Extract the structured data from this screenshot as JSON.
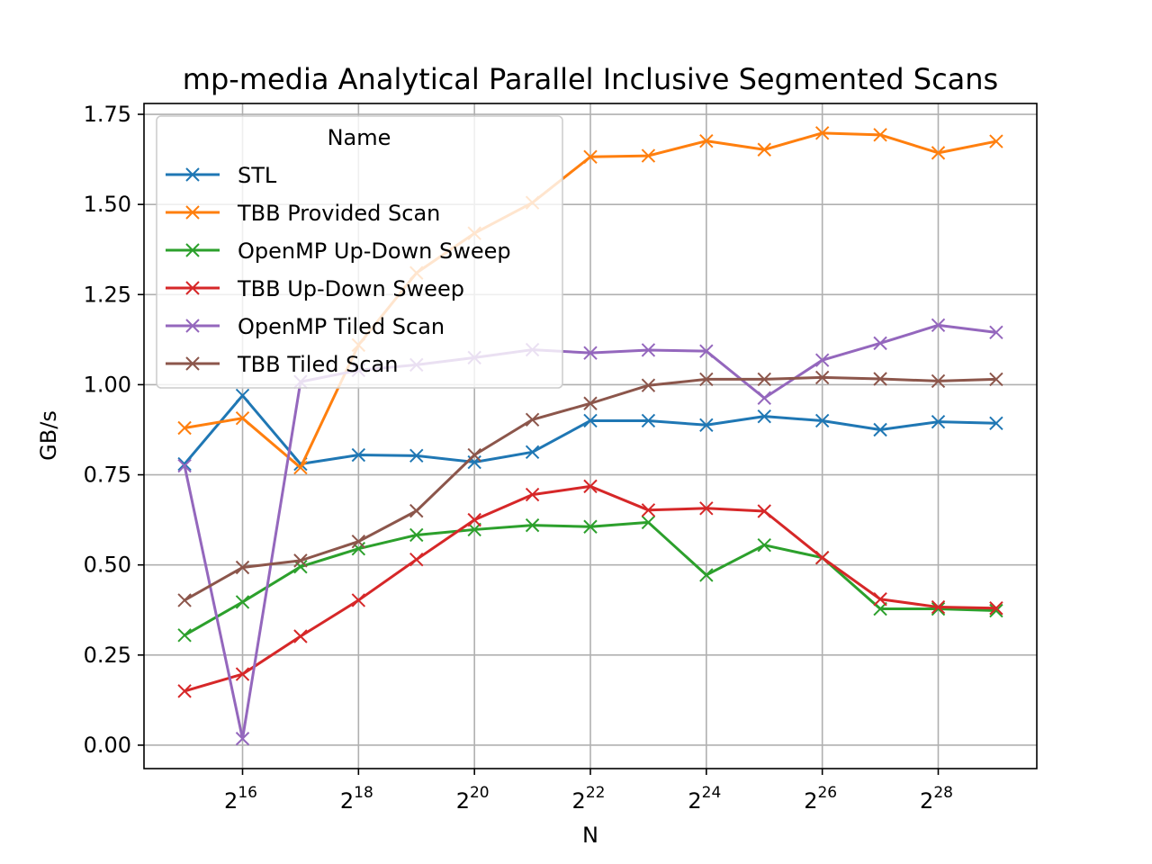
{
  "chart_data": {
    "type": "line",
    "title": "mp-media Analytical Parallel Inclusive Segmented Scans",
    "xlabel": "N",
    "ylabel": "GB/s",
    "x_scale": "log2",
    "x_exponents": [
      15,
      16,
      17,
      18,
      19,
      20,
      21,
      22,
      23,
      24,
      25,
      26,
      27,
      28,
      29
    ],
    "x_tick_exponents": [
      16,
      18,
      20,
      22,
      24,
      26,
      28
    ],
    "x_tick_base": "2",
    "y_ticks": [
      "0.00",
      "0.25",
      "0.50",
      "0.75",
      "1.00",
      "1.25",
      "1.50",
      "1.75"
    ],
    "ylim": [
      -0.065,
      1.78
    ],
    "grid": true,
    "legend": {
      "title": "Name",
      "position": "upper-left"
    },
    "marker": "x",
    "series": [
      {
        "name": "STL",
        "color": "#1f77b4",
        "values": [
          0.78,
          0.97,
          0.78,
          0.805,
          0.803,
          0.785,
          0.813,
          0.9,
          0.9,
          0.888,
          0.912,
          0.9,
          0.875,
          0.897,
          0.893
        ]
      },
      {
        "name": "TBB Provided Scan",
        "color": "#ff7f0e",
        "values": [
          0.88,
          0.907,
          0.77,
          1.11,
          1.31,
          1.42,
          1.505,
          1.632,
          1.635,
          1.676,
          1.652,
          1.698,
          1.693,
          1.643,
          1.675
        ]
      },
      {
        "name": "OpenMP Up-Down Sweep",
        "color": "#2ca02c",
        "values": [
          0.305,
          0.397,
          0.495,
          0.545,
          0.583,
          0.598,
          0.61,
          0.606,
          0.618,
          0.472,
          0.555,
          0.52,
          0.378,
          0.378,
          0.373
        ]
      },
      {
        "name": "TBB Up-Down Sweep",
        "color": "#d62728",
        "values": [
          0.15,
          0.197,
          0.302,
          0.402,
          0.515,
          0.625,
          0.695,
          0.718,
          0.652,
          0.657,
          0.649,
          0.52,
          0.405,
          0.383,
          0.38
        ]
      },
      {
        "name": "OpenMP Tiled Scan",
        "color": "#9467bd",
        "values": [
          0.775,
          0.018,
          1.008,
          1.04,
          1.055,
          1.075,
          1.097,
          1.088,
          1.096,
          1.093,
          0.963,
          1.068,
          1.115,
          1.165,
          1.145
        ]
      },
      {
        "name": "TBB Tiled Scan",
        "color": "#8c564b",
        "values": [
          0.402,
          0.493,
          0.512,
          0.565,
          0.65,
          0.805,
          0.903,
          0.948,
          0.998,
          1.015,
          1.015,
          1.02,
          1.016,
          1.01,
          1.015
        ]
      }
    ]
  }
}
